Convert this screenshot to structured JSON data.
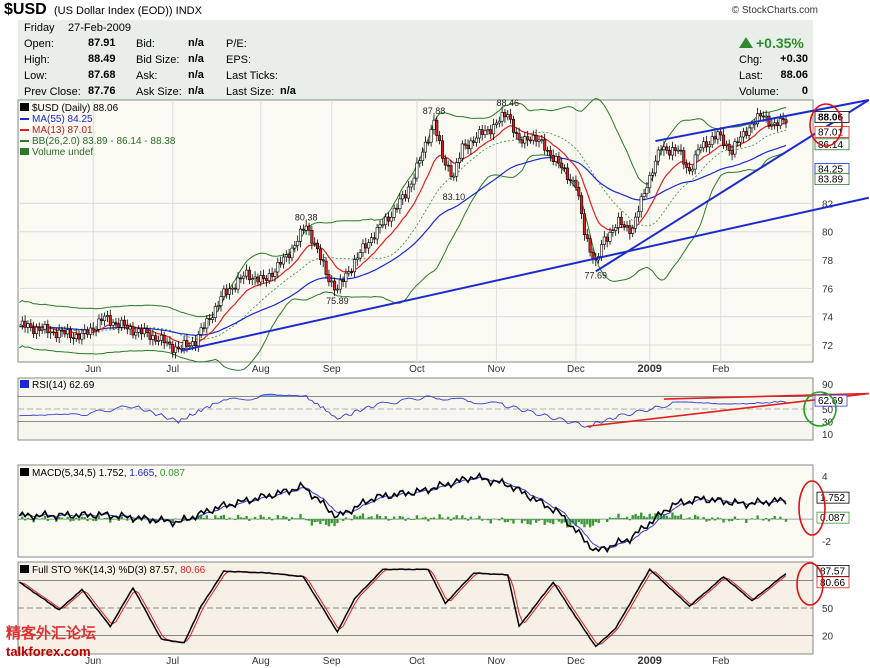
{
  "header": {
    "symbol": "$USD",
    "description": "(US Dollar Index (EOD))",
    "exchange": "INDX",
    "brand": "© StockCharts.com"
  },
  "quote": {
    "day": "Friday",
    "date": "27-Feb-2009",
    "open_label": "Open:",
    "open": "87.91",
    "high_label": "High:",
    "high": "88.49",
    "low_label": "Low:",
    "low": "87.68",
    "prev_label": "Prev Close:",
    "prev": "87.76",
    "bid_label": "Bid:",
    "bid": "n/a",
    "bidsize_label": "Bid Size:",
    "bidsize": "n/a",
    "ask_label": "Ask:",
    "ask": "n/a",
    "asksize_label": "Ask Size:",
    "asksize": "n/a",
    "pe_label": "P/E:",
    "eps_label": "EPS:",
    "lastticks_label": "Last Ticks:",
    "lastsize_label": "Last Size:",
    "lastsize": "n/a",
    "change_pct": "+0.35%",
    "chg_label": "Chg:",
    "chg": "+0.30",
    "last_label": "Last:",
    "last": "88.06",
    "volume_label": "Volume:",
    "volume": "0",
    "up_color": "#2e8b2e"
  },
  "watermark": {
    "cn": "精客外汇论坛",
    "en": "talkforex.com"
  },
  "chart_data": [
    {
      "type": "line",
      "panel": "price",
      "legend": {
        "price": "$USD (Daily) 88.06",
        "ma55": "MA(55) 84.25",
        "ma13": "MA(13) 87.01",
        "bb": "BB(26,2.0) 83.89 - 86.14 - 88.38",
        "volume": "Volume undef"
      },
      "x_ticks": [
        "Jun",
        "Jul",
        "Aug",
        "Sep",
        "Oct",
        "Nov",
        "Dec",
        "2009",
        "Feb"
      ],
      "y_ticks": [
        "72",
        "74",
        "76",
        "78",
        "80",
        "82"
      ],
      "ylim": [
        70.8,
        89.3
      ],
      "annotations": [
        "87.88",
        "88.46",
        "80.38",
        "83.10",
        "75.89",
        "77.69"
      ],
      "value_tags": [
        "88.06",
        "87.01",
        "86.14",
        "84.25",
        "83.89"
      ],
      "anchors": [
        [
          0,
          73.4
        ],
        [
          10,
          73.0
        ],
        [
          22,
          72.6
        ],
        [
          30,
          73.9
        ],
        [
          38,
          73.2
        ],
        [
          46,
          72.7
        ],
        [
          56,
          71.7
        ],
        [
          62,
          72.3
        ],
        [
          66,
          73.6
        ],
        [
          72,
          75.6
        ],
        [
          80,
          77.0
        ],
        [
          86,
          76.5
        ],
        [
          94,
          78.2
        ],
        [
          101,
          80.4
        ],
        [
          104,
          79.2
        ],
        [
          108,
          77.0
        ],
        [
          112,
          75.9
        ],
        [
          118,
          77.9
        ],
        [
          124,
          79.6
        ],
        [
          130,
          81.0
        ],
        [
          136,
          82.6
        ],
        [
          142,
          85.5
        ],
        [
          146,
          87.88
        ],
        [
          149,
          85.1
        ],
        [
          153,
          84.0
        ],
        [
          156,
          85.9
        ],
        [
          162,
          86.8
        ],
        [
          168,
          87.6
        ],
        [
          172,
          88.46
        ],
        [
          176,
          86.2
        ],
        [
          180,
          86.8
        ],
        [
          185,
          86.0
        ],
        [
          191,
          84.5
        ],
        [
          196,
          83.3
        ],
        [
          199,
          80.0
        ],
        [
          203,
          77.69
        ],
        [
          206,
          79.5
        ],
        [
          211,
          80.6
        ],
        [
          216,
          80.2
        ],
        [
          221,
          83.4
        ],
        [
          226,
          85.9
        ],
        [
          232,
          85.7
        ],
        [
          236,
          84.3
        ],
        [
          240,
          86.0
        ],
        [
          246,
          86.8
        ],
        [
          251,
          85.7
        ],
        [
          256,
          87.2
        ],
        [
          262,
          88.3
        ],
        [
          266,
          87.4
        ],
        [
          270,
          88.06
        ]
      ],
      "ma55_start": 73.3,
      "ma13_start": 73.3,
      "bb_width_start": 0.8,
      "trendlines": [
        {
          "color": "#1a2ad0",
          "from": [
            57,
            71.6
          ],
          "to": [
            278,
            82.4
          ]
        },
        {
          "color": "#1a2ad0",
          "from": [
            203,
            77.2
          ],
          "to": [
            278,
            89.3
          ]
        },
        {
          "color": "#1a2ad0",
          "from": [
            224,
            86.4
          ],
          "to": [
            278,
            89.3
          ]
        }
      ]
    },
    {
      "type": "line",
      "panel": "rsi",
      "legend": "RSI(14) 62.69",
      "y_ticks": [
        "90",
        "70",
        "50",
        "30",
        "10"
      ],
      "ylim": [
        0,
        100
      ],
      "value_tags": [
        "62.69"
      ],
      "anchors": [
        [
          0,
          42
        ],
        [
          20,
          40
        ],
        [
          40,
          55
        ],
        [
          56,
          30
        ],
        [
          70,
          62
        ],
        [
          90,
          72
        ],
        [
          100,
          73
        ],
        [
          112,
          35
        ],
        [
          125,
          56
        ],
        [
          144,
          70
        ],
        [
          170,
          57
        ],
        [
          200,
          22
        ],
        [
          210,
          37
        ],
        [
          230,
          58
        ],
        [
          250,
          61
        ],
        [
          270,
          62.69
        ]
      ],
      "trendlines": [
        {
          "color": "#e02020",
          "from": [
            200,
            22
          ],
          "to": [
            278,
            70
          ]
        },
        {
          "color": "#e02020",
          "from": [
            227,
            66
          ],
          "to": [
            278,
            70
          ]
        }
      ]
    },
    {
      "type": "line",
      "panel": "macd",
      "legend": {
        "title": "MACD(5,34,5)",
        "macd": "1.752",
        "signal": "1.665",
        "histogram": "0.087"
      },
      "y_ticks": [
        "4",
        "2",
        "0",
        "-2"
      ],
      "ylim": [
        -3.5,
        5
      ],
      "value_tags": [
        "1.752",
        "0.087"
      ],
      "anchors": [
        [
          0,
          0.3
        ],
        [
          30,
          0.4
        ],
        [
          56,
          -0.3
        ],
        [
          70,
          1.1
        ],
        [
          90,
          2.3
        ],
        [
          100,
          3.0
        ],
        [
          112,
          0.2
        ],
        [
          125,
          2.0
        ],
        [
          142,
          2.6
        ],
        [
          160,
          3.9
        ],
        [
          172,
          3.2
        ],
        [
          190,
          0.6
        ],
        [
          203,
          -3.0
        ],
        [
          215,
          -1.8
        ],
        [
          230,
          1.3
        ],
        [
          240,
          1.9
        ],
        [
          255,
          1.4
        ],
        [
          270,
          1.752
        ]
      ]
    },
    {
      "type": "line",
      "panel": "stochastic",
      "legend": {
        "title": "Full STO %K(14,3) %D(3)",
        "k": "87.57",
        "d": "80.66"
      },
      "y_ticks": [
        "80",
        "50",
        "20"
      ],
      "ylim": [
        0,
        100
      ],
      "value_tags": [
        "87.57",
        "80.66"
      ],
      "anchors": [
        [
          0,
          78
        ],
        [
          14,
          48
        ],
        [
          22,
          70
        ],
        [
          32,
          30
        ],
        [
          40,
          72
        ],
        [
          50,
          16
        ],
        [
          58,
          12
        ],
        [
          64,
          52
        ],
        [
          72,
          90
        ],
        [
          88,
          88
        ],
        [
          100,
          84
        ],
        [
          112,
          24
        ],
        [
          118,
          60
        ],
        [
          128,
          92
        ],
        [
          144,
          92
        ],
        [
          150,
          55
        ],
        [
          160,
          88
        ],
        [
          172,
          86
        ],
        [
          176,
          30
        ],
        [
          188,
          78
        ],
        [
          196,
          40
        ],
        [
          203,
          8
        ],
        [
          210,
          28
        ],
        [
          222,
          92
        ],
        [
          236,
          52
        ],
        [
          248,
          84
        ],
        [
          258,
          58
        ],
        [
          270,
          87.57
        ]
      ]
    }
  ]
}
